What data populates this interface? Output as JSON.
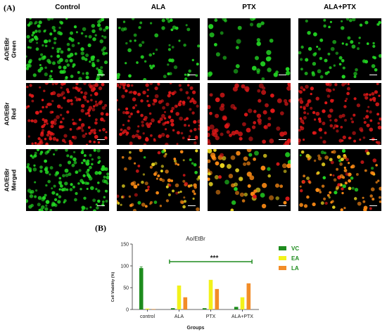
{
  "panel_a": {
    "letter": "(A)",
    "columns": [
      "Control",
      "ALA",
      "PTX",
      "ALA+PTX"
    ],
    "rows": [
      {
        "label_lines": [
          "AO/EtBr",
          "Green"
        ],
        "stain": "green"
      },
      {
        "label_lines": [
          "AO/EtBr",
          "Red"
        ],
        "stain": "red"
      },
      {
        "label_lines": [
          "AO/EtBr",
          "Merged"
        ],
        "stain": "merged"
      }
    ],
    "colors": {
      "green": "#22d622",
      "red": "#e01818",
      "orange": "#ff8c14",
      "yellow": "#e6d21e"
    }
  },
  "panel_b": {
    "letter": "(B)",
    "significance": "***"
  },
  "chart_data": {
    "type": "bar",
    "title": "Ao/EtBr",
    "xlabel": "Groups",
    "ylabel": "Cell Viability (%)",
    "ylim": [
      0,
      150
    ],
    "yticks": [
      0,
      50,
      100,
      150
    ],
    "categories": [
      "control",
      "ALA",
      "PTX",
      "ALA+PTX"
    ],
    "series": [
      {
        "name": "VC",
        "color": "#1e8c1e",
        "values": [
          95,
          3,
          3,
          6
        ]
      },
      {
        "name": "EA",
        "color": "#f2f21a",
        "values": [
          2,
          55,
          68,
          28
        ]
      },
      {
        "name": "LA",
        "color": "#f28c28",
        "values": [
          1,
          28,
          47,
          60
        ]
      }
    ],
    "legend": "right",
    "grid": false
  }
}
